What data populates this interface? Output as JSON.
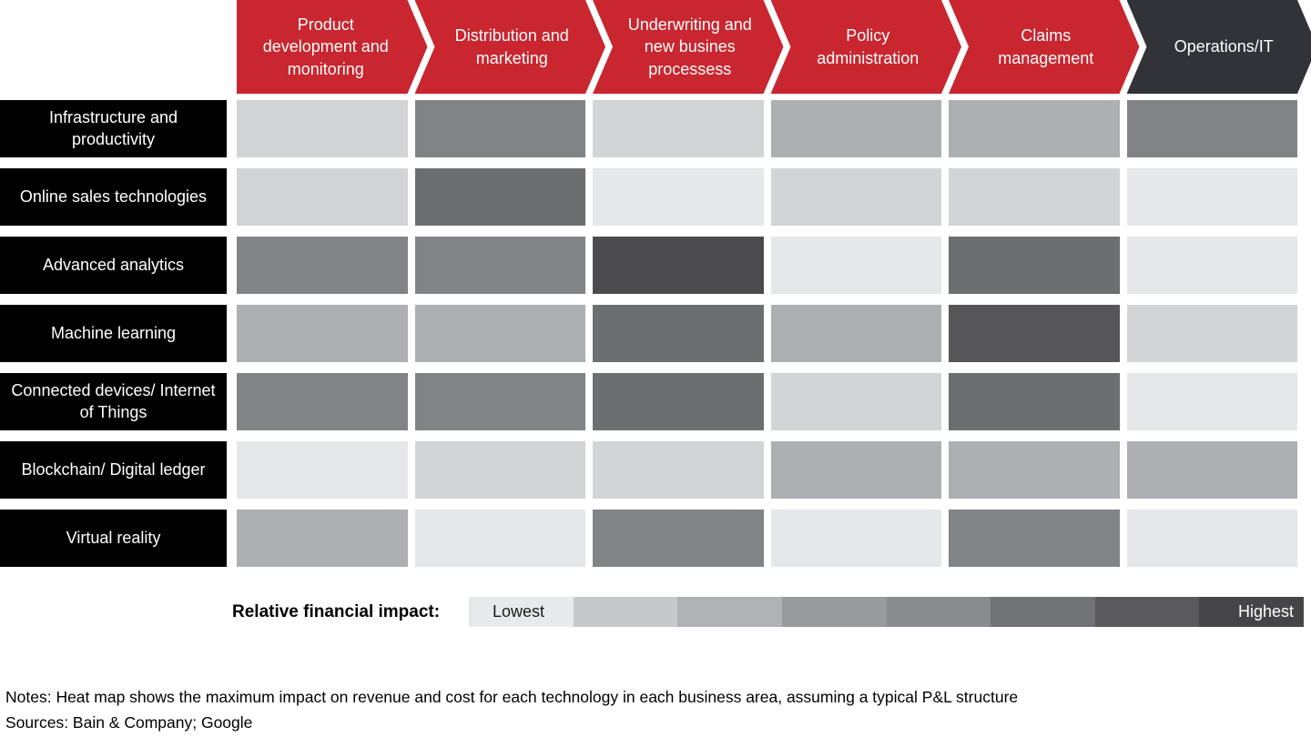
{
  "columns": [
    {
      "label": "Product development and monitoring",
      "color": "#c9262f"
    },
    {
      "label": "Distribution and marketing",
      "color": "#c9262f"
    },
    {
      "label": "Underwriting and new busines processess",
      "color": "#c9262f"
    },
    {
      "label": "Policy administration",
      "color": "#c9262f"
    },
    {
      "label": "Claims management",
      "color": "#c9262f"
    },
    {
      "label": "Operations/IT",
      "color": "#323338"
    }
  ],
  "rows": [
    "Infrastructure and productivity",
    "Online sales technologies",
    "Advanced analytics",
    "Machine learning",
    "Connected devices/ Internet of Things",
    "Blockchain/ Digital ledger",
    "Virtual reality"
  ],
  "chart_data": {
    "type": "heatmap",
    "title": "",
    "columns": [
      "Product development and monitoring",
      "Distribution and marketing",
      "Underwriting and new busines processess",
      "Policy administration",
      "Claims management",
      "Operations/IT"
    ],
    "rows": [
      "Infrastructure and productivity",
      "Online sales technologies",
      "Advanced analytics",
      "Machine learning",
      "Connected devices/ Internet of Things",
      "Blockchain/ Digital ledger",
      "Virtual reality"
    ],
    "value_scale": {
      "min": 1,
      "max": 8,
      "min_label": "Lowest",
      "max_label": "Highest",
      "steps": 8
    },
    "levels": [
      [
        2,
        5,
        2,
        3,
        3,
        5
      ],
      [
        2,
        6,
        1,
        2,
        2,
        1
      ],
      [
        5,
        5,
        8,
        1,
        6,
        1
      ],
      [
        3,
        3,
        6,
        3,
        7,
        2
      ],
      [
        5,
        5,
        6,
        2,
        6,
        1
      ],
      [
        1,
        2,
        2,
        3,
        3,
        3
      ],
      [
        3,
        1,
        5,
        1,
        5,
        1
      ]
    ],
    "palette": [
      "#e6e7e9",
      "#d3d4d6",
      "#aeafb2",
      "#999a9d",
      "#828387",
      "#6d6e70",
      "#565659",
      "#4b4b4e"
    ],
    "legend_position": "bottom"
  },
  "legend": {
    "label": "Relative financial impact:",
    "lowest": "Lowest",
    "highest": "Highest",
    "colors": [
      "#e8e9ea",
      "#c7c8ca",
      "#b1b2b5",
      "#999a9d",
      "#8a8b8e",
      "#717275",
      "#5a5a5d",
      "#454548"
    ]
  },
  "notes": {
    "line1": "Notes: Heat map shows the maximum impact on revenue and cost for each technology in each business area, assuming a typical P&L structure",
    "line2": "Sources: Bain & Company; Google"
  },
  "colors": {
    "header_red": "#c9262f",
    "header_dark": "#323338",
    "row_label_bg": "#000000",
    "text_on_dark": "#ffffff"
  }
}
